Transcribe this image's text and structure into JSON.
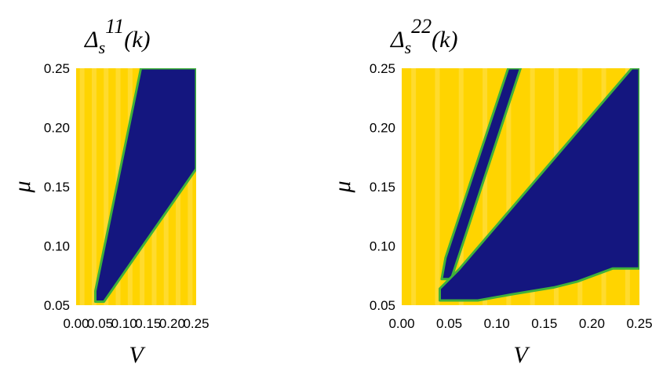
{
  "chart_data": [
    {
      "type": "heatmap",
      "title": "Δs11(k)",
      "title_parts": {
        "base": "Δ",
        "sub": "s",
        "sup": "11",
        "arg": "(k)"
      },
      "xlabel": "V",
      "ylabel": "μ",
      "xlim": [
        0.0,
        0.25
      ],
      "ylim": [
        0.05,
        0.25
      ],
      "xticks": [
        "0.00",
        "0.05",
        "0.10",
        "0.15",
        "0.20",
        "0.25"
      ],
      "yticks": [
        "0.05",
        "0.10",
        "0.15",
        "0.20",
        "0.25"
      ],
      "colors": {
        "background": "#ffd400",
        "region": "#14167f",
        "edge": "#3fb23a"
      },
      "regions": [
        {
          "name": "dark-region",
          "polygon": [
            [
              0.04,
              0.053
            ],
            [
              0.04,
              0.062
            ],
            [
              0.135,
              0.25
            ],
            [
              0.25,
              0.25
            ],
            [
              0.25,
              0.165
            ],
            [
              0.058,
              0.053
            ]
          ]
        }
      ]
    },
    {
      "type": "heatmap",
      "title": "Δs22(k)",
      "title_parts": {
        "base": "Δ",
        "sub": "s",
        "sup": "22",
        "arg": "(k)"
      },
      "xlabel": "V",
      "ylabel": "μ",
      "xlim": [
        0.0,
        0.25
      ],
      "ylim": [
        0.05,
        0.25
      ],
      "xticks": [
        "0.00",
        "0.05",
        "0.10",
        "0.15",
        "0.20",
        "0.25"
      ],
      "yticks": [
        "0.05",
        "0.10",
        "0.15",
        "0.20",
        "0.25"
      ],
      "colors": {
        "background": "#ffd400",
        "region": "#14167f",
        "edge": "#3fb23a"
      },
      "regions": [
        {
          "name": "dark-stripe",
          "polygon": [
            [
              0.042,
              0.072
            ],
            [
              0.046,
              0.09
            ],
            [
              0.112,
              0.25
            ],
            [
              0.125,
              0.25
            ],
            [
              0.052,
              0.072
            ]
          ]
        },
        {
          "name": "dark-region",
          "polygon": [
            [
              0.04,
              0.054
            ],
            [
              0.04,
              0.064
            ],
            [
              0.06,
              0.08
            ],
            [
              0.242,
              0.25
            ],
            [
              0.25,
              0.25
            ],
            [
              0.25,
              0.081
            ],
            [
              0.222,
              0.081
            ],
            [
              0.185,
              0.07
            ],
            [
              0.16,
              0.065
            ],
            [
              0.115,
              0.059
            ],
            [
              0.08,
              0.054
            ]
          ]
        }
      ]
    }
  ]
}
